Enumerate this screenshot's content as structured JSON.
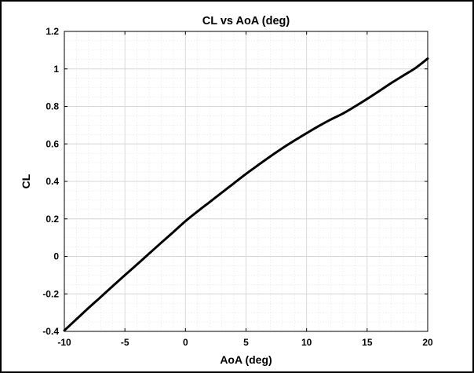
{
  "chart_data": {
    "type": "line",
    "title": "CL vs AoA (deg)",
    "xlabel": "AoA (deg)",
    "ylabel": "CL",
    "xlim": [
      -10,
      20
    ],
    "ylim": [
      -0.4,
      1.2
    ],
    "xticks": [
      -10,
      -5,
      0,
      5,
      10,
      15,
      20
    ],
    "yticks": [
      -0.4,
      -0.2,
      0,
      0.2,
      0.4,
      0.6,
      0.8,
      1,
      1.2
    ],
    "xtick_labels": [
      "-10",
      "-5",
      "0",
      "5",
      "10",
      "15",
      "20"
    ],
    "ytick_labels": [
      "-0.4",
      "-0.2",
      "0",
      "0.2",
      "0.4",
      "0.6",
      "0.8",
      "1",
      "1.2"
    ],
    "grid": true,
    "minor_grid": true,
    "series": [
      {
        "color": "#000000",
        "x": [
          -10,
          -9,
          -8,
          -7,
          -6,
          -5,
          -4,
          -3,
          -2,
          -1,
          0,
          1,
          2,
          3,
          4,
          5,
          6,
          7,
          8,
          9,
          10,
          11,
          12,
          13,
          14,
          15,
          16,
          17,
          18,
          19,
          20
        ],
        "y": [
          -0.395,
          -0.335,
          -0.275,
          -0.217,
          -0.158,
          -0.1,
          -0.043,
          0.015,
          0.073,
          0.13,
          0.188,
          0.24,
          0.29,
          0.34,
          0.39,
          0.44,
          0.487,
          0.533,
          0.577,
          0.618,
          0.657,
          0.695,
          0.73,
          0.762,
          0.8,
          0.84,
          0.882,
          0.925,
          0.965,
          1.005,
          1.055
        ]
      }
    ]
  }
}
